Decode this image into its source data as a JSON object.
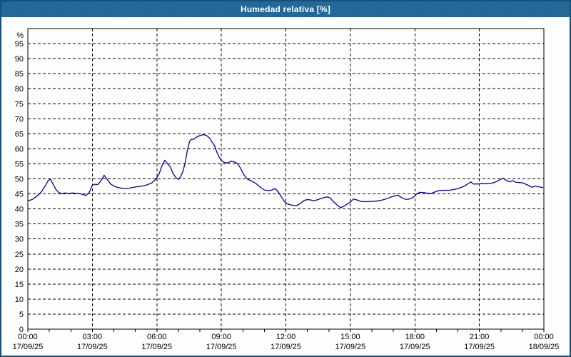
{
  "window": {
    "title": "Humedad relativa [%]"
  },
  "colors": {
    "titlebar_bg": "#1d6496",
    "window_border": "#15507a",
    "plot_bg": "#fdfdfd",
    "plot_border": "#000000",
    "grid": "#000000",
    "text": "#000000",
    "line": "#0000a0"
  },
  "chart_data": {
    "type": "line",
    "title": "Humedad relativa [%]",
    "y_unit_label": "%",
    "xlabel": "",
    "ylabel": "%",
    "ylim": [
      0,
      100
    ],
    "y_tick_step": 5,
    "y_ticks": [
      0,
      5,
      10,
      15,
      20,
      25,
      30,
      35,
      40,
      45,
      50,
      55,
      60,
      65,
      70,
      75,
      80,
      85,
      90,
      95
    ],
    "xlim_hours": [
      0,
      24
    ],
    "x_minor_tick_every_hours": 1,
    "x_gridline_hours": [
      3,
      6,
      9,
      12,
      15,
      18,
      21
    ],
    "grid": "dashed",
    "legend": "none",
    "x_ticks_major": [
      {
        "hour": 0,
        "time": "00:00",
        "date": "17/09/25"
      },
      {
        "hour": 3,
        "time": "03:00",
        "date": "17/09/25"
      },
      {
        "hour": 6,
        "time": "06:00",
        "date": "17/09/25"
      },
      {
        "hour": 9,
        "time": "09:00",
        "date": "17/09/25"
      },
      {
        "hour": 12,
        "time": "12:00",
        "date": "17/09/25"
      },
      {
        "hour": 15,
        "time": "15:00",
        "date": "17/09/25"
      },
      {
        "hour": 18,
        "time": "18:00",
        "date": "17/09/25"
      },
      {
        "hour": 21,
        "time": "21:00",
        "date": "17/09/25"
      },
      {
        "hour": 24,
        "time": "00:00",
        "date": "18/09/25"
      }
    ],
    "series": [
      {
        "name": "Humedad relativa",
        "color": "#0000a0",
        "points": [
          [
            0,
            42.7
          ],
          [
            0.2,
            43.1
          ],
          [
            0.35,
            43.9
          ],
          [
            0.5,
            44.7
          ],
          [
            0.65,
            45.9
          ],
          [
            0.8,
            47.6
          ],
          [
            0.95,
            49.4
          ],
          [
            1.05,
            49.9
          ],
          [
            1.15,
            48.6
          ],
          [
            1.3,
            46.5
          ],
          [
            1.45,
            45.4
          ],
          [
            1.6,
            45.1
          ],
          [
            1.75,
            45.3
          ],
          [
            1.9,
            45.1
          ],
          [
            2.05,
            45.3
          ],
          [
            2.2,
            45.2
          ],
          [
            2.4,
            45.1
          ],
          [
            2.55,
            44.8
          ],
          [
            2.7,
            44.5
          ],
          [
            2.85,
            45.4
          ],
          [
            3.0,
            47.9
          ],
          [
            3.1,
            48.2
          ],
          [
            3.25,
            48.1
          ],
          [
            3.4,
            49.3
          ],
          [
            3.55,
            51.2
          ],
          [
            3.7,
            49.7
          ],
          [
            3.85,
            48.3
          ],
          [
            4.0,
            47.6
          ],
          [
            4.2,
            47.1
          ],
          [
            4.45,
            46.8
          ],
          [
            4.7,
            46.9
          ],
          [
            5.0,
            47.3
          ],
          [
            5.3,
            47.6
          ],
          [
            5.55,
            48.0
          ],
          [
            5.75,
            48.6
          ],
          [
            5.95,
            49.8
          ],
          [
            6.1,
            51.6
          ],
          [
            6.25,
            54.6
          ],
          [
            6.37,
            56.2
          ],
          [
            6.5,
            55.0
          ],
          [
            6.62,
            54.1
          ],
          [
            6.75,
            51.8
          ],
          [
            6.9,
            50.3
          ],
          [
            7.0,
            49.8
          ],
          [
            7.1,
            50.7
          ],
          [
            7.22,
            52.6
          ],
          [
            7.32,
            55.5
          ],
          [
            7.42,
            59.5
          ],
          [
            7.52,
            62.4
          ],
          [
            7.6,
            63.1
          ],
          [
            7.72,
            63.2
          ],
          [
            7.85,
            63.9
          ],
          [
            8.0,
            64.4
          ],
          [
            8.15,
            64.7
          ],
          [
            8.3,
            64.5
          ],
          [
            8.45,
            63.6
          ],
          [
            8.55,
            62.4
          ],
          [
            8.68,
            61.1
          ],
          [
            8.8,
            58.7
          ],
          [
            8.9,
            57.2
          ],
          [
            9.0,
            56.1
          ],
          [
            9.15,
            55.4
          ],
          [
            9.3,
            55.3
          ],
          [
            9.45,
            55.9
          ],
          [
            9.6,
            55.6
          ],
          [
            9.75,
            55.1
          ],
          [
            9.9,
            53.5
          ],
          [
            10.05,
            51.3
          ],
          [
            10.2,
            50.0
          ],
          [
            10.4,
            49.3
          ],
          [
            10.6,
            48.5
          ],
          [
            10.8,
            47.3
          ],
          [
            11.0,
            46.3
          ],
          [
            11.2,
            46.1
          ],
          [
            11.35,
            46.3
          ],
          [
            11.5,
            46.8
          ],
          [
            11.65,
            45.6
          ],
          [
            11.8,
            43.9
          ],
          [
            11.95,
            42.3
          ],
          [
            12.1,
            41.6
          ],
          [
            12.3,
            41.2
          ],
          [
            12.5,
            41.1
          ],
          [
            12.65,
            41.7
          ],
          [
            12.85,
            42.8
          ],
          [
            13.0,
            43.1
          ],
          [
            13.15,
            43.0
          ],
          [
            13.3,
            42.7
          ],
          [
            13.5,
            43.1
          ],
          [
            13.7,
            43.6
          ],
          [
            13.9,
            44.0
          ],
          [
            14.05,
            43.7
          ],
          [
            14.2,
            42.5
          ],
          [
            14.4,
            41.2
          ],
          [
            14.55,
            40.4
          ],
          [
            14.7,
            40.9
          ],
          [
            14.85,
            41.6
          ],
          [
            15.0,
            42.3
          ],
          [
            15.15,
            43.3
          ],
          [
            15.3,
            43.0
          ],
          [
            15.5,
            42.5
          ],
          [
            15.7,
            42.4
          ],
          [
            15.95,
            42.5
          ],
          [
            16.2,
            42.6
          ],
          [
            16.45,
            42.9
          ],
          [
            16.7,
            43.4
          ],
          [
            16.9,
            44.0
          ],
          [
            17.1,
            44.4
          ],
          [
            17.2,
            44.6
          ],
          [
            17.35,
            43.9
          ],
          [
            17.55,
            43.2
          ],
          [
            17.7,
            43.2
          ],
          [
            17.85,
            43.6
          ],
          [
            17.95,
            44.0
          ],
          [
            18.1,
            45.1
          ],
          [
            18.25,
            45.5
          ],
          [
            18.45,
            45.4
          ],
          [
            18.6,
            45.2
          ],
          [
            18.75,
            45.1
          ],
          [
            18.95,
            45.7
          ],
          [
            19.1,
            46.1
          ],
          [
            19.35,
            46.2
          ],
          [
            19.6,
            46.2
          ],
          [
            19.85,
            46.5
          ],
          [
            20.1,
            47.0
          ],
          [
            20.3,
            47.6
          ],
          [
            20.5,
            48.5
          ],
          [
            20.6,
            49.0
          ],
          [
            20.72,
            48.3
          ],
          [
            20.9,
            48.3
          ],
          [
            21.1,
            48.4
          ],
          [
            21.35,
            48.4
          ],
          [
            21.6,
            48.6
          ],
          [
            21.8,
            49.1
          ],
          [
            22.0,
            49.9
          ],
          [
            22.1,
            50.2
          ],
          [
            22.25,
            49.5
          ],
          [
            22.4,
            49.0
          ],
          [
            22.55,
            49.4
          ],
          [
            22.67,
            48.9
          ],
          [
            22.85,
            48.8
          ],
          [
            23.0,
            48.7
          ],
          [
            23.2,
            48.1
          ],
          [
            23.45,
            47.2
          ],
          [
            23.6,
            47.6
          ],
          [
            23.8,
            47.3
          ],
          [
            23.95,
            47.1
          ]
        ]
      }
    ]
  }
}
